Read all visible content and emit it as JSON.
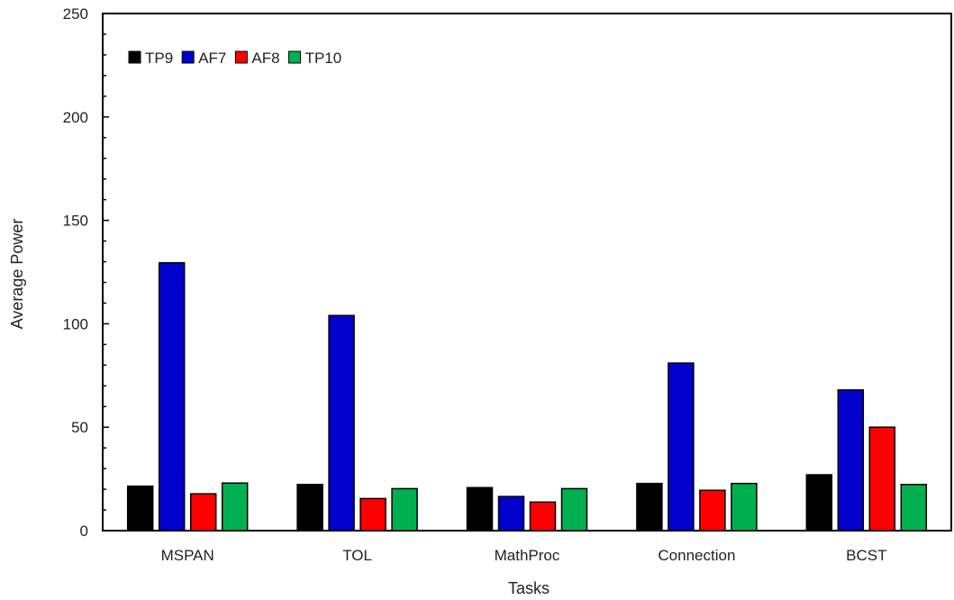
{
  "chart_data": {
    "type": "bar",
    "title": "",
    "xlabel": "Tasks",
    "ylabel": "Average Power",
    "ylim": [
      0,
      250
    ],
    "yticks": [
      0,
      50,
      100,
      150,
      200,
      250
    ],
    "grid": false,
    "legend_position": "top-left",
    "categories": [
      "MSPAN",
      "TOL",
      "MathProc",
      "Connection",
      "BCST"
    ],
    "series": [
      {
        "name": "TP9",
        "color": "#000000",
        "values": [
          21.5,
          22.3,
          20.8,
          22.8,
          27.0
        ]
      },
      {
        "name": "AF7",
        "color": "#0000cc",
        "values": [
          129.5,
          104.0,
          16.5,
          81.0,
          68.0
        ]
      },
      {
        "name": "AF8",
        "color": "#ff0000",
        "values": [
          17.8,
          15.5,
          13.8,
          19.5,
          50.0
        ]
      },
      {
        "name": "TP10",
        "color": "#00b050",
        "values": [
          23.0,
          20.3,
          20.3,
          22.8,
          22.3
        ]
      }
    ]
  }
}
